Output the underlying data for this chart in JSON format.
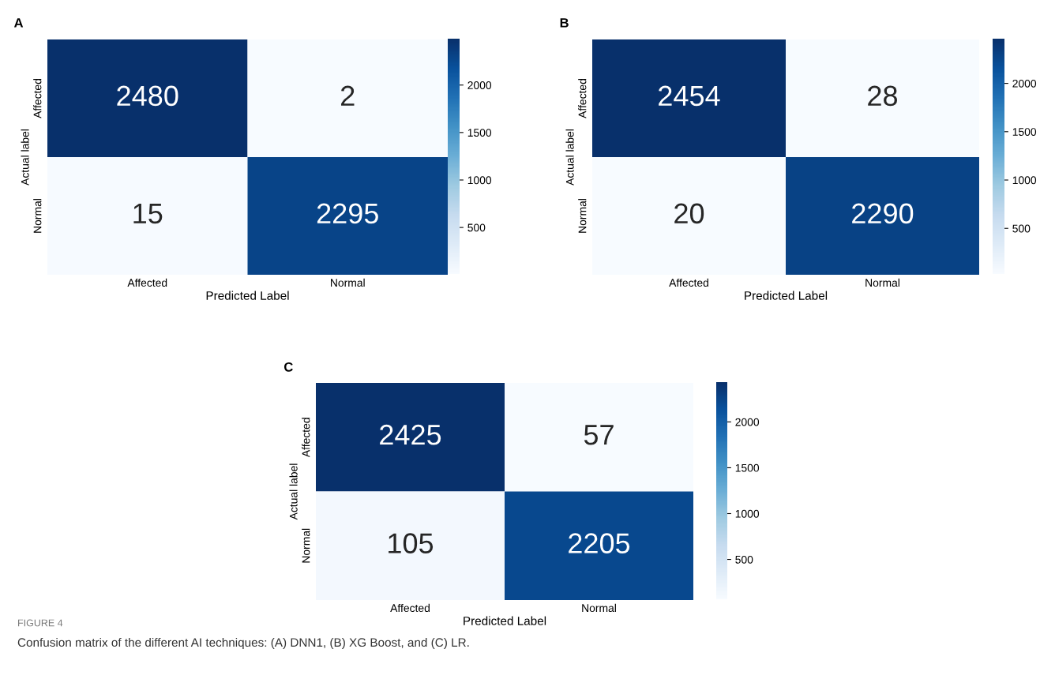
{
  "chart_data": [
    {
      "type": "heatmap",
      "title": "A",
      "categories": [
        "Affected",
        "Normal"
      ],
      "y_categories": [
        "Affected",
        "Normal"
      ],
      "xlabel": "Predicted Label",
      "ylabel": "Actual label",
      "cells": [
        [
          2480,
          2
        ],
        [
          15,
          2295
        ]
      ],
      "clim": [
        2,
        2480
      ],
      "cticks": [
        500,
        1000,
        1500,
        2000
      ],
      "data_labels": true
    },
    {
      "type": "heatmap",
      "title": "B",
      "categories": [
        "Affected",
        "Normal"
      ],
      "y_categories": [
        "Affected",
        "Normal"
      ],
      "xlabel": "Predicted Label",
      "ylabel": "Actual label",
      "cells": [
        [
          2454,
          28
        ],
        [
          20,
          2290
        ]
      ],
      "clim": [
        20,
        2454
      ],
      "cticks": [
        500,
        1000,
        1500,
        2000
      ],
      "data_labels": true
    },
    {
      "type": "heatmap",
      "title": "C",
      "categories": [
        "Affected",
        "Normal"
      ],
      "y_categories": [
        "Affected",
        "Normal"
      ],
      "xlabel": "Predicted Label",
      "ylabel": "Actual label",
      "cells": [
        [
          2425,
          57
        ],
        [
          105,
          2205
        ]
      ],
      "clim": [
        57,
        2425
      ],
      "cticks": [
        500,
        1000,
        1500,
        2000
      ],
      "data_labels": true,
      "annotations": [
        "FIGURE 4",
        "Confusion matrix of the different AI techniques: (A) DNN1, (B) XG Boost, and (C) LR."
      ]
    }
  ]
}
